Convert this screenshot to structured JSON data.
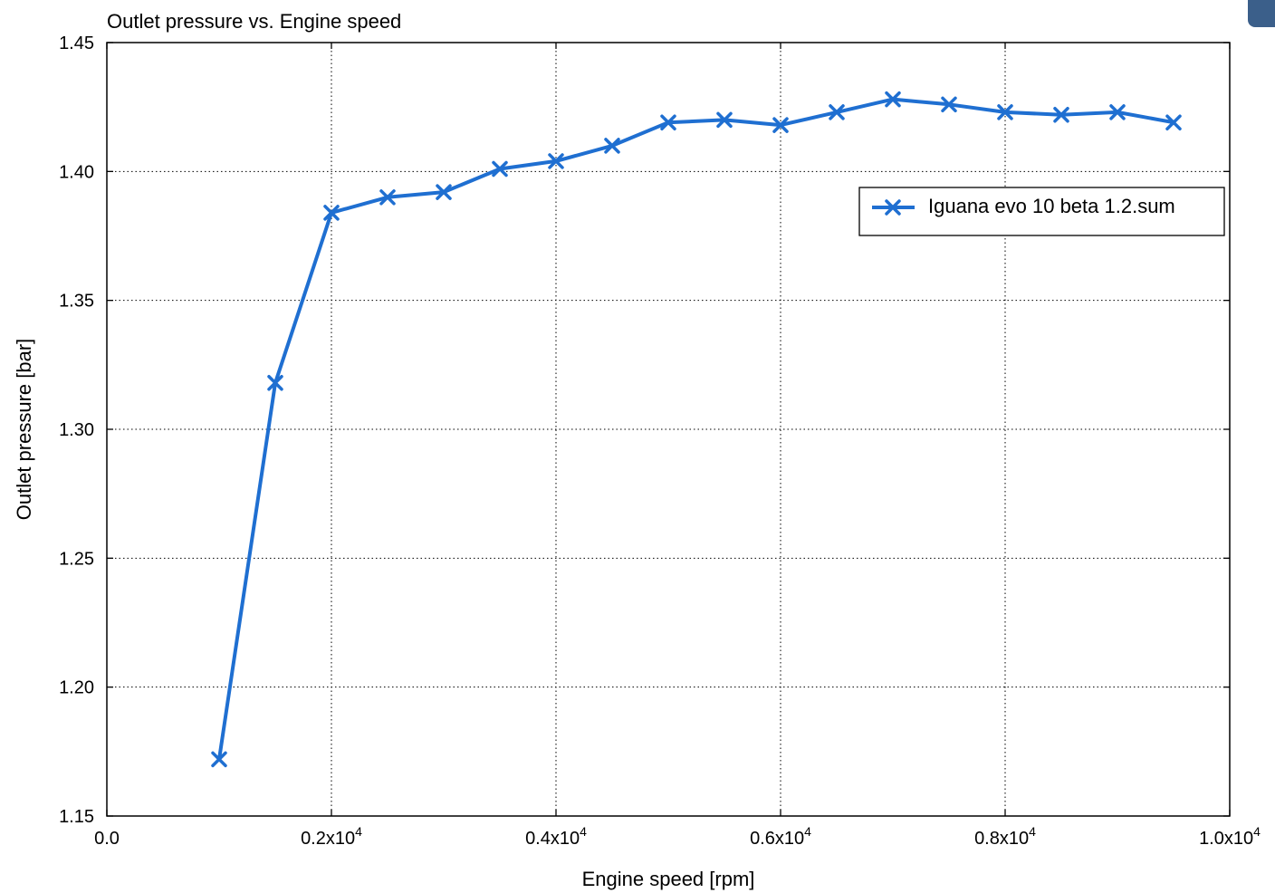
{
  "chart_data": {
    "type": "line",
    "title": "Outlet pressure vs. Engine speed",
    "xlabel": "Engine speed  [rpm]",
    "ylabel": "Outlet pressure  [bar]",
    "xlim": [
      0,
      10000
    ],
    "ylim": [
      1.15,
      1.45
    ],
    "x_ticks": [
      {
        "value": 0,
        "mantissa": "0.0",
        "exp": ""
      },
      {
        "value": 2000,
        "mantissa": "0.2x10",
        "exp": "4"
      },
      {
        "value": 4000,
        "mantissa": "0.4x10",
        "exp": "4"
      },
      {
        "value": 6000,
        "mantissa": "0.6x10",
        "exp": "4"
      },
      {
        "value": 8000,
        "mantissa": "0.8x10",
        "exp": "4"
      },
      {
        "value": 10000,
        "mantissa": "1.0x10",
        "exp": "4"
      }
    ],
    "y_ticks": [
      {
        "value": 1.15,
        "label": "1.15"
      },
      {
        "value": 1.2,
        "label": "1.20"
      },
      {
        "value": 1.25,
        "label": "1.25"
      },
      {
        "value": 1.3,
        "label": "1.30"
      },
      {
        "value": 1.35,
        "label": "1.35"
      },
      {
        "value": 1.4,
        "label": "1.40"
      },
      {
        "value": 1.45,
        "label": "1.45"
      }
    ],
    "grid": true,
    "legend_position": "upper-right",
    "series": [
      {
        "name": "Iguana evo 10 beta 1.2.sum",
        "color": "#1f6fd1",
        "marker": "x",
        "x": [
          1000,
          1500,
          2000,
          2500,
          3000,
          3500,
          4000,
          4500,
          5000,
          5500,
          6000,
          6500,
          7000,
          7500,
          8000,
          8500,
          9000,
          9500
        ],
        "y": [
          1.172,
          1.318,
          1.384,
          1.39,
          1.392,
          1.401,
          1.404,
          1.41,
          1.419,
          1.42,
          1.418,
          1.423,
          1.428,
          1.426,
          1.423,
          1.422,
          1.423,
          1.419
        ]
      }
    ]
  }
}
